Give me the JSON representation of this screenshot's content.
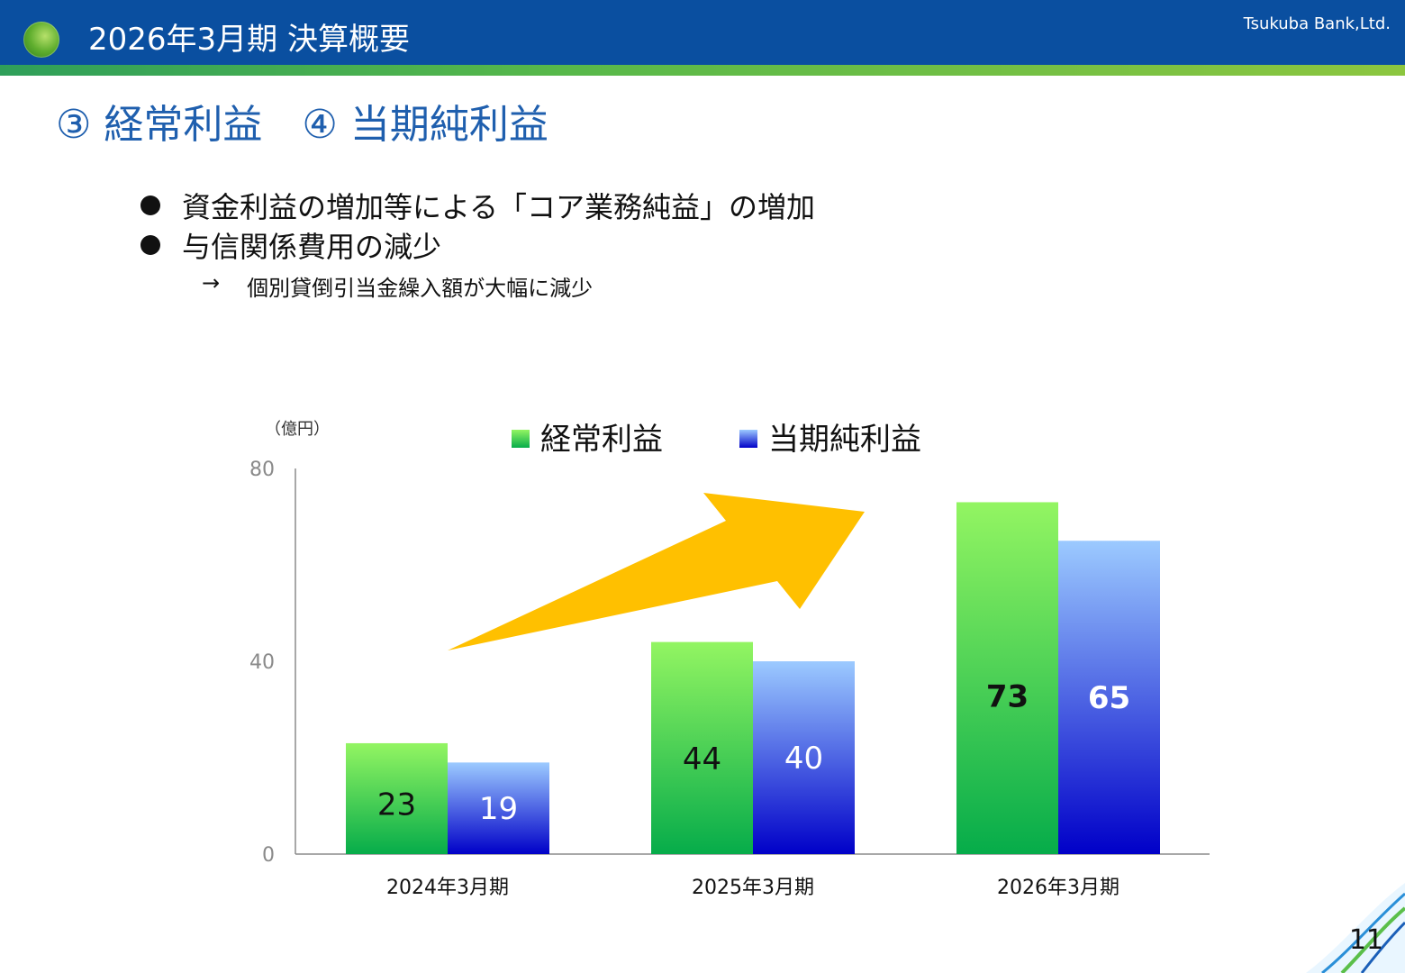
{
  "header": {
    "title": "2026年3月期 決算概要",
    "company": "Tsukuba Bank,Ltd."
  },
  "section_title": "③ 経常利益　④ 当期純利益",
  "bullets": [
    "資金利益の増加等による「コア業務純益」の増加",
    "与信関係費用の減少"
  ],
  "sub_bullet": {
    "arrow": "→",
    "text": "個別貸倒引当金繰入額が大幅に減少"
  },
  "page_number": "11",
  "colors": {
    "header_blue": "#0a4fa0",
    "title_blue": "#1f5fae",
    "green_top": "#93f562",
    "green_bottom": "#06ac4a",
    "blue_top": "#9ccaff",
    "blue_bottom": "#0000c8",
    "arrow": "#ffc000"
  },
  "chart_data": {
    "type": "bar",
    "unit_label": "（億円）",
    "categories": [
      "2024年3月期",
      "2025年3月期",
      "2026年3月期"
    ],
    "series": [
      {
        "name": "経常利益",
        "values": [
          23,
          44,
          73
        ]
      },
      {
        "name": "当期純利益",
        "values": [
          19,
          40,
          65
        ]
      }
    ],
    "ylim": [
      0,
      80
    ],
    "yticks": [
      0,
      40,
      80
    ],
    "grid": false,
    "legend": "top",
    "annotation": "upward-trend-arrow"
  }
}
